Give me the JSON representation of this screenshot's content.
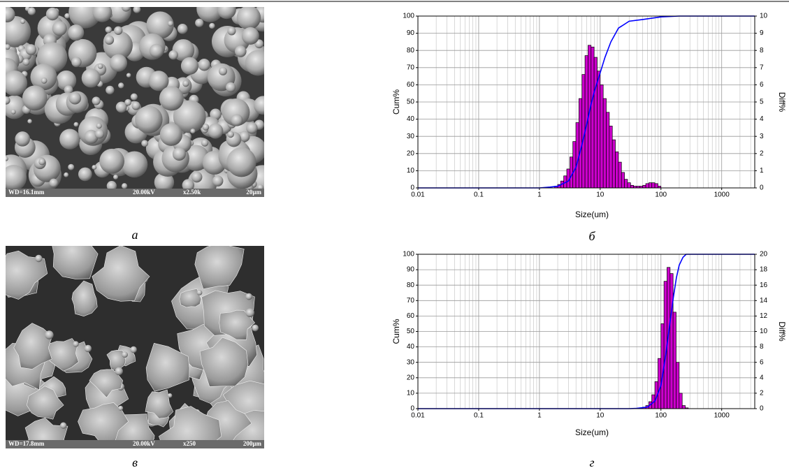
{
  "images": [
    {
      "info": [
        "WD=16.1mm",
        "20.00kV",
        "x2.50k",
        "20µm"
      ],
      "panel_label": "а"
    },
    {
      "info": [
        "WD=17.8mm",
        "20.00kV",
        "x250",
        "200µm"
      ],
      "panel_label": "в"
    }
  ],
  "chart_data": [
    {
      "type": "histogram",
      "panel_label": "б",
      "xlabel": "Size(um)",
      "ylabel": "Cum%",
      "y2label": "Diff%",
      "xscale": "log",
      "grid": true,
      "xlim": [
        0.01,
        3500
      ],
      "xticks": [
        0.01,
        0.1,
        1,
        10,
        100,
        1000
      ],
      "ylim": [
        0,
        100
      ],
      "yticks": [
        0,
        10,
        20,
        30,
        40,
        50,
        60,
        70,
        80,
        90,
        100
      ],
      "y2lim": [
        0,
        10
      ],
      "y2ticks": [
        0,
        1,
        2,
        3,
        4,
        5,
        6,
        7,
        8,
        9,
        10
      ],
      "bins": [
        1.778,
        1.995,
        2.239,
        2.512,
        2.818,
        3.162,
        3.548,
        3.981,
        4.467,
        5.012,
        5.623,
        6.31,
        7.079,
        7.943,
        8.913,
        10,
        11.22,
        12.59,
        14.13,
        15.85,
        17.78,
        19.95,
        22.39,
        25.12,
        28.18,
        31.62,
        35.48,
        39.81,
        44.67,
        50.12,
        56.23,
        63.1,
        70.79,
        79.43,
        89.13,
        100
      ],
      "values": [
        0.1,
        0.2,
        0.4,
        0.7,
        1.1,
        1.8,
        2.7,
        3.8,
        5.2,
        6.6,
        7.7,
        8.3,
        8.2,
        7.6,
        6.8,
        6.0,
        5.2,
        4.4,
        3.6,
        2.8,
        2.1,
        1.5,
        0.9,
        0.5,
        0.3,
        0.15,
        0.1,
        0.1,
        0.1,
        0.15,
        0.25,
        0.3,
        0.3,
        0.25,
        0.1
      ],
      "color": "#cc00cc",
      "axis": "y2",
      "cumulative": {
        "color": "#0000ff",
        "x": [
          0.01,
          1,
          1.5,
          2,
          3,
          4,
          5,
          6,
          7,
          8,
          10,
          12,
          15,
          20,
          30,
          50,
          100,
          200,
          3500
        ],
        "values": [
          0,
          0,
          0.5,
          1,
          4,
          12,
          25,
          37,
          48,
          56,
          67,
          76,
          85,
          93,
          97,
          98,
          99.5,
          100,
          100
        ]
      }
    },
    {
      "type": "histogram",
      "panel_label": "г",
      "xlabel": "Size(um)",
      "ylabel": "Cum%",
      "y2label": "Diff%",
      "xscale": "log",
      "grid": true,
      "xlim": [
        0.01,
        3500
      ],
      "xticks": [
        0.01,
        0.1,
        1,
        10,
        100,
        1000
      ],
      "ylim": [
        0,
        100
      ],
      "yticks": [
        0,
        10,
        20,
        30,
        40,
        50,
        60,
        70,
        80,
        90,
        100
      ],
      "y2lim": [
        0,
        20
      ],
      "y2ticks": [
        0,
        2,
        4,
        6,
        8,
        10,
        12,
        14,
        16,
        18,
        20
      ],
      "bins": [
        39.81,
        44.67,
        50.12,
        56.23,
        63.1,
        70.79,
        79.43,
        89.13,
        100,
        112.2,
        125.9,
        141.3,
        158.5,
        177.8,
        199.5,
        223.9,
        251.2,
        281.8
      ],
      "values": [
        0.05,
        0.1,
        0.2,
        0.4,
        0.9,
        1.8,
        3.5,
        6.5,
        11,
        16.5,
        18.3,
        17.5,
        12.5,
        6,
        2,
        0.4,
        0.1
      ],
      "color": "#cc00cc",
      "axis": "y2",
      "cumulative": {
        "color": "#0000ff",
        "x": [
          0.01,
          30,
          40,
          60,
          80,
          100,
          120,
          140,
          160,
          180,
          200,
          230,
          260,
          3500
        ],
        "values": [
          0,
          0,
          0.2,
          1,
          5,
          15,
          35,
          55,
          72,
          85,
          93,
          98,
          100,
          100
        ]
      }
    }
  ]
}
